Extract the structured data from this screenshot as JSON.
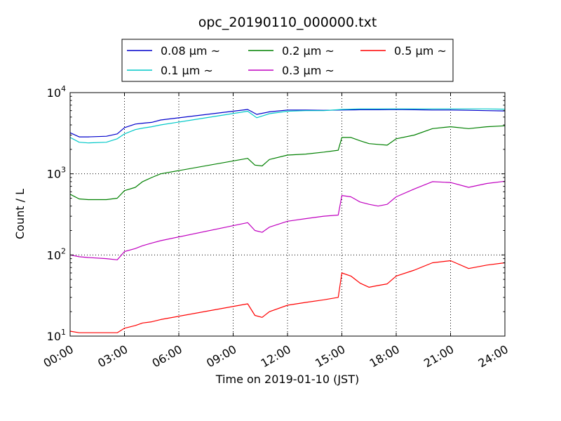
{
  "chart_data": {
    "type": "line",
    "title": "opc_20190110_000000.txt",
    "xlabel": "Time on 2019-01-10 (JST)",
    "ylabel": "Count / L",
    "x_unit": "hours",
    "xlim": [
      0,
      24
    ],
    "ylim": [
      10,
      10000
    ],
    "yscale": "log",
    "grid": true,
    "legend_position": "top-center",
    "x_ticks": [
      {
        "value": 0,
        "label": "00:00"
      },
      {
        "value": 3,
        "label": "03:00"
      },
      {
        "value": 6,
        "label": "06:00"
      },
      {
        "value": 9,
        "label": "09:00"
      },
      {
        "value": 12,
        "label": "12:00"
      },
      {
        "value": 15,
        "label": "15:00"
      },
      {
        "value": 18,
        "label": "18:00"
      },
      {
        "value": 21,
        "label": "21:00"
      },
      {
        "value": 24,
        "label": "24:00"
      }
    ],
    "y_ticks": [
      {
        "value": 10,
        "base": "10",
        "exp": "1"
      },
      {
        "value": 100,
        "base": "10",
        "exp": "2"
      },
      {
        "value": 1000,
        "base": "10",
        "exp": "3"
      },
      {
        "value": 10000,
        "base": "10",
        "exp": "4"
      }
    ],
    "series": [
      {
        "name": "0.08 μm ~",
        "color": "#0000cc",
        "x": [
          0,
          0.5,
          1,
          2,
          2.6,
          3,
          3.6,
          4,
          4.5,
          5,
          9.8,
          10.3,
          11,
          12,
          13,
          14,
          15,
          16,
          17,
          18,
          19,
          20,
          21,
          22,
          23,
          24
        ],
        "y": [
          3200,
          2850,
          2850,
          2900,
          3100,
          3700,
          4100,
          4200,
          4300,
          4600,
          6200,
          5400,
          5800,
          6100,
          6100,
          6050,
          6100,
          6150,
          6150,
          6200,
          6150,
          6100,
          6100,
          6050,
          6000,
          5950
        ]
      },
      {
        "name": "0.1 μm ~",
        "color": "#00c8c8",
        "x": [
          0,
          0.5,
          1,
          2,
          2.6,
          3,
          3.6,
          4,
          4.5,
          5,
          9.8,
          10.3,
          11,
          12,
          13,
          14,
          15,
          16,
          17,
          18,
          19,
          20,
          21,
          22,
          23,
          24
        ],
        "y": [
          2800,
          2450,
          2400,
          2450,
          2700,
          3100,
          3500,
          3650,
          3800,
          4000,
          5900,
          4900,
          5500,
          5900,
          6000,
          6000,
          6200,
          6300,
          6300,
          6300,
          6300,
          6300,
          6300,
          6300,
          6300,
          6250
        ]
      },
      {
        "name": "0.2 μm ~",
        "color": "#008000",
        "x": [
          0,
          0.5,
          1,
          2,
          2.6,
          3,
          3.6,
          4,
          4.5,
          5,
          9.8,
          10.2,
          10.6,
          11,
          12,
          13,
          14,
          14.8,
          15,
          15.5,
          16,
          16.5,
          17,
          17.5,
          18,
          19,
          20,
          21,
          22,
          23,
          24
        ],
        "y": [
          560,
          490,
          480,
          480,
          500,
          620,
          680,
          800,
          900,
          1000,
          1550,
          1280,
          1250,
          1500,
          1700,
          1750,
          1850,
          1950,
          2800,
          2800,
          2550,
          2350,
          2300,
          2250,
          2700,
          3000,
          3600,
          3800,
          3600,
          3800,
          3900
        ]
      },
      {
        "name": "0.3 μm ~",
        "color": "#c000c0",
        "x": [
          0,
          0.5,
          1,
          2,
          2.6,
          3,
          3.6,
          4,
          4.5,
          5,
          9.8,
          10.2,
          10.6,
          11,
          12,
          13,
          14,
          14.8,
          15,
          15.5,
          16,
          16.5,
          17,
          17.5,
          18,
          19,
          20,
          21,
          22,
          23,
          24
        ],
        "y": [
          100,
          95,
          93,
          90,
          87,
          110,
          120,
          130,
          140,
          150,
          250,
          200,
          190,
          220,
          260,
          280,
          300,
          310,
          540,
          520,
          450,
          420,
          400,
          420,
          520,
          650,
          800,
          780,
          680,
          760,
          810
        ]
      },
      {
        "name": "0.5 μm ~",
        "color": "#ff0000",
        "x": [
          0,
          0.5,
          1,
          2,
          2.6,
          3,
          3.6,
          4,
          4.5,
          5,
          9.8,
          10.2,
          10.6,
          11,
          12,
          13,
          14,
          14.8,
          15,
          15.5,
          16,
          16.5,
          17,
          17.5,
          18,
          19,
          20,
          21,
          22,
          23,
          24
        ],
        "y": [
          11.5,
          11,
          11,
          11,
          11,
          12.5,
          13.5,
          14.5,
          15,
          16,
          25,
          18,
          17,
          20,
          24,
          26,
          28,
          30,
          60,
          55,
          45,
          40,
          42,
          44,
          55,
          65,
          80,
          85,
          68,
          75,
          80
        ]
      }
    ]
  }
}
